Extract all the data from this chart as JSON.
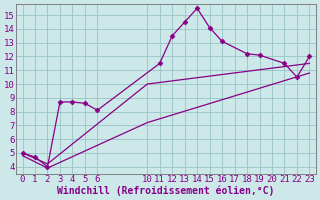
{
  "line1_x": [
    0,
    1,
    2,
    3,
    4,
    5,
    6,
    11,
    12,
    13,
    14,
    15,
    16,
    18,
    19,
    21,
    22,
    23
  ],
  "line1_y": [
    5.0,
    4.7,
    4.0,
    8.7,
    8.7,
    8.6,
    8.1,
    11.5,
    13.5,
    14.5,
    15.5,
    14.1,
    13.1,
    12.2,
    12.1,
    11.5,
    10.5,
    12.0
  ],
  "line2_x": [
    0,
    2,
    10,
    23
  ],
  "line2_y": [
    5.0,
    4.2,
    10.0,
    11.5
  ],
  "line3_x": [
    0,
    2,
    10,
    23
  ],
  "line3_y": [
    4.8,
    3.9,
    7.2,
    10.8
  ],
  "bg_color": "#cce8e8",
  "grid_color": "#99c4c4",
  "line_color": "#880088",
  "xlabel": "Windchill (Refroidissement éolien,°C)",
  "xlim": [
    -0.5,
    23.5
  ],
  "ylim": [
    3.5,
    15.8
  ],
  "xticks": [
    0,
    1,
    2,
    3,
    4,
    5,
    6,
    10,
    11,
    12,
    13,
    14,
    15,
    16,
    17,
    18,
    19,
    20,
    21,
    22,
    23
  ],
  "yticks": [
    4,
    5,
    6,
    7,
    8,
    9,
    10,
    11,
    12,
    13,
    14,
    15
  ],
  "tick_fontsize": 6.5,
  "xlabel_fontsize": 7.0
}
